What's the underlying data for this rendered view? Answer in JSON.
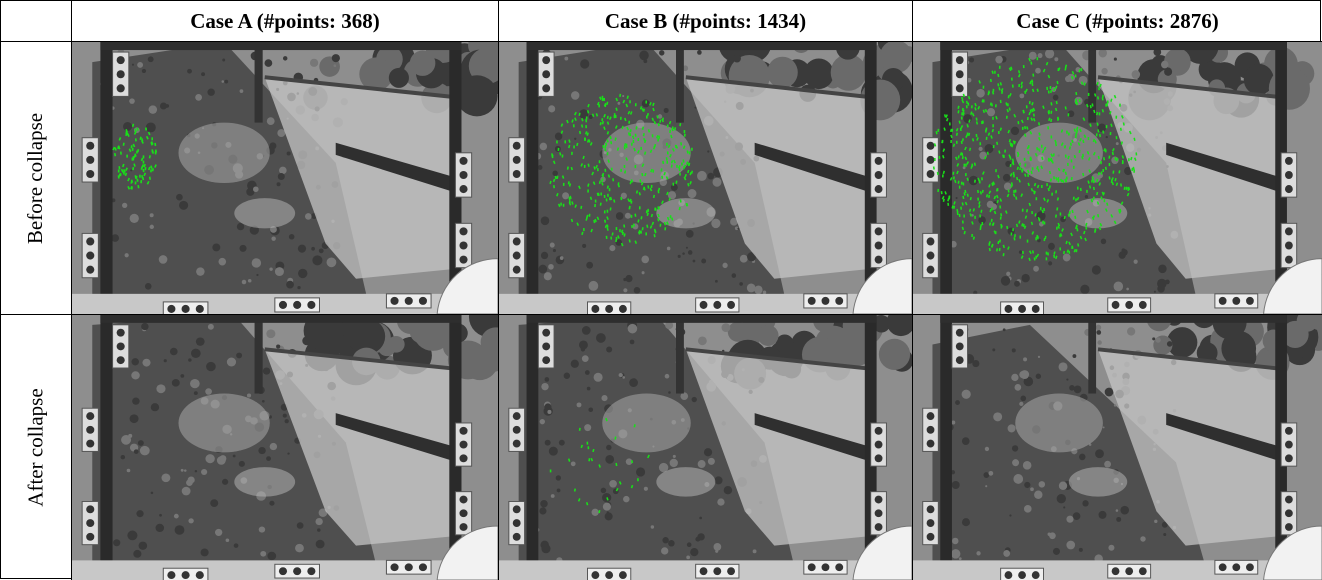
{
  "table": {
    "header": [
      "Case A (#points: 368)",
      "Case B (#points: 1434)",
      "Case C (#points: 2876)"
    ],
    "rows": [
      {
        "label": "Before collapse"
      },
      {
        "label": "After collapse"
      }
    ]
  }
}
